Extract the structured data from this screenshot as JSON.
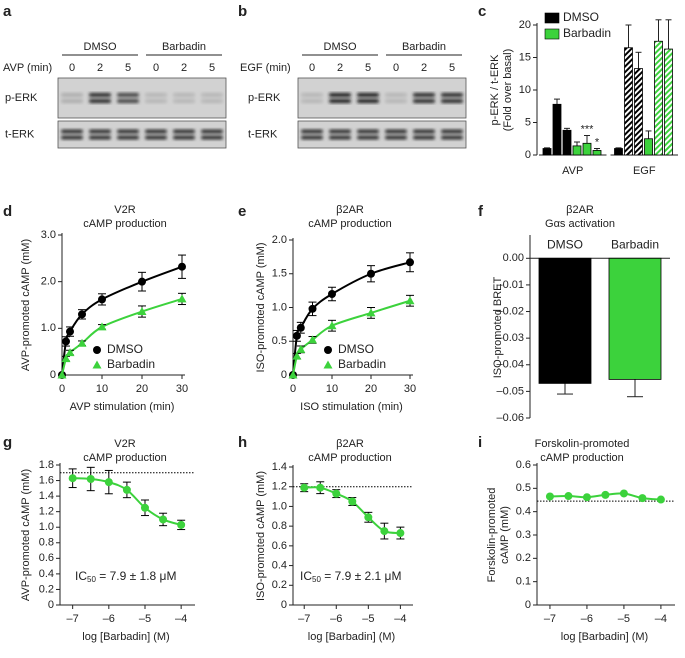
{
  "blots": [
    {
      "panel": "a",
      "stimulus": "AVP (min)",
      "groups": [
        "DMSO",
        "Barbadin"
      ],
      "times": [
        "0",
        "2",
        "5",
        "0",
        "2",
        "5"
      ],
      "rows": [
        "p-ERK",
        "t-ERK"
      ]
    },
    {
      "panel": "b",
      "stimulus": "EGF (min)",
      "groups": [
        "DMSO",
        "Barbadin"
      ],
      "times": [
        "0",
        "2",
        "5",
        "0",
        "2",
        "5"
      ],
      "rows": [
        "p-ERK",
        "t-ERK"
      ]
    }
  ],
  "chart_data": [
    {
      "panel": "c",
      "type": "bar",
      "ylabel": [
        "p-ERK / t-ERK",
        "(Fold over basal)"
      ],
      "categories": [
        "AVP",
        "EGF"
      ],
      "series": [
        {
          "name": "DMSO",
          "color": "#000000",
          "values": [
            [
              1,
              7.8,
              3.8
            ],
            [
              1,
              16.5,
              13.3
            ]
          ],
          "errors": [
            [
              0.1,
              0.8,
              0.3
            ],
            [
              0.1,
              3.5,
              2.5
            ]
          ]
        },
        {
          "name": "Barbadin",
          "color": "#3cd23c",
          "values": [
            [
              1.4,
              1.8,
              0.7
            ],
            [
              2.5,
              17.5,
              16.3
            ]
          ],
          "errors": [
            [
              0.6,
              1.2,
              0.3
            ],
            [
              1.2,
              3.3,
              4.5
            ]
          ],
          "significance": [
            [
              null,
              "***",
              "*"
            ],
            [
              null,
              null,
              null
            ]
          ]
        }
      ],
      "hatched": [
        [
          false,
          false,
          false
        ],
        [
          false,
          true,
          true
        ]
      ],
      "ylim": [
        0,
        20
      ],
      "yticks": [
        0,
        5,
        10,
        15,
        20
      ],
      "legend": "upper left"
    },
    {
      "panel": "d",
      "type": "line",
      "title": [
        "V2R",
        "cAMP production"
      ],
      "xlabel": "AVP stimulation (min)",
      "ylabel": [
        "AVP-promoted cAMP (mM)"
      ],
      "x": [
        0,
        1,
        2,
        5,
        10,
        20,
        30
      ],
      "series": [
        {
          "name": "DMSO",
          "color": "#000000",
          "marker": "circle",
          "values": [
            0,
            0.72,
            0.93,
            1.3,
            1.62,
            2.0,
            2.32
          ],
          "errors": [
            0,
            0.1,
            0.1,
            0.1,
            0.12,
            0.2,
            0.25
          ]
        },
        {
          "name": "Barbadin",
          "color": "#3cd23c",
          "marker": "triangle",
          "values": [
            0,
            0.35,
            0.48,
            0.68,
            1.03,
            1.36,
            1.63
          ],
          "errors": [
            0,
            0.05,
            0.05,
            0.05,
            0.05,
            0.12,
            0.12
          ]
        }
      ],
      "xlim": [
        0,
        30
      ],
      "xticks": [
        0,
        10,
        20,
        30
      ],
      "ylim": [
        0,
        3
      ],
      "yticks": [
        0,
        {
          "value": 1,
          "label": "1.0"
        },
        {
          "value": 2,
          "label": "2.0"
        },
        {
          "value": 3,
          "label": "3.0"
        }
      ],
      "legend": "lower right"
    },
    {
      "panel": "e",
      "type": "line",
      "title": [
        "β2AR",
        "cAMP production"
      ],
      "xlabel": "ISO stimulation (min)",
      "ylabel": [
        "ISO-promoted cAMP (mM)"
      ],
      "x": [
        0,
        1,
        2,
        5,
        10,
        20,
        30
      ],
      "series": [
        {
          "name": "DMSO",
          "color": "#000000",
          "marker": "circle",
          "values": [
            0,
            0.58,
            0.7,
            0.98,
            1.2,
            1.5,
            1.67
          ],
          "errors": [
            0,
            0.08,
            0.08,
            0.1,
            0.1,
            0.12,
            0.14
          ]
        },
        {
          "name": "Barbadin",
          "color": "#3cd23c",
          "marker": "triangle",
          "values": [
            0,
            0.28,
            0.38,
            0.52,
            0.73,
            0.92,
            1.1
          ],
          "errors": [
            0,
            0.04,
            0.05,
            0.05,
            0.08,
            0.08,
            0.08
          ]
        }
      ],
      "xlim": [
        0,
        30
      ],
      "xticks": [
        0,
        10,
        20,
        30
      ],
      "ylim": [
        0,
        2
      ],
      "yticks": [
        0,
        0.5,
        {
          "value": 1,
          "label": "1.0"
        },
        1.5,
        {
          "value": 2,
          "label": "2.0"
        }
      ],
      "legend": "lower right"
    },
    {
      "panel": "f",
      "type": "bar",
      "title": [
        "β2AR",
        "Gαs activation"
      ],
      "ylabel": [
        "ISO-promoted BRET"
      ],
      "categories": [
        "DMSO",
        "Barbadin"
      ],
      "values": [
        -0.047,
        -0.0455
      ],
      "errors": [
        0.004,
        0.0065
      ],
      "colors": [
        "#000000",
        "#3cd23c"
      ],
      "ylim": [
        -0.06,
        0.008
      ],
      "yticks": [
        {
          "value": 0,
          "label": "0.00"
        },
        {
          "value": -0.01,
          "label": "–0.01"
        },
        {
          "value": -0.02,
          "label": "–0.02"
        },
        {
          "value": -0.03,
          "label": "–0.03"
        },
        {
          "value": -0.04,
          "label": "–0.04"
        },
        {
          "value": -0.05,
          "label": "–0.05"
        },
        {
          "value": -0.06,
          "label": "–0.06"
        }
      ]
    },
    {
      "panel": "g",
      "type": "line",
      "title": [
        "V2R",
        "cAMP production"
      ],
      "xlabel": "log [Barbadin] (M)",
      "ylabel": [
        "AVP-promoted cAMP (mM)"
      ],
      "x": [
        -7,
        -6.5,
        -6,
        -5.5,
        -5,
        -4.5,
        -4
      ],
      "series": [
        {
          "color": "#3cd23c",
          "marker": "circle",
          "values": [
            1.63,
            1.62,
            1.58,
            1.48,
            1.25,
            1.1,
            1.03
          ],
          "errors": [
            0.12,
            0.15,
            0.15,
            0.1,
            0.1,
            0.08,
            0.06
          ]
        }
      ],
      "reference_line": 1.7,
      "annotation": {
        "text": "IC",
        "subscript": "50",
        "rest": " = 7.9 ± 1.8 μM"
      },
      "xlim": [
        -7.35,
        -3.7
      ],
      "xticks": [
        {
          "value": -7,
          "label": "–7"
        },
        {
          "value": -6,
          "label": "–6"
        },
        {
          "value": -5,
          "label": "–5"
        },
        {
          "value": -4,
          "label": "–4"
        }
      ],
      "ylim": [
        0,
        1.8
      ],
      "yticks": [
        0,
        0.2,
        0.4,
        0.6,
        0.8,
        {
          "value": 1,
          "label": "1.0"
        },
        1.2,
        1.4,
        1.6,
        1.8
      ]
    },
    {
      "panel": "h",
      "type": "line",
      "title": [
        "β2AR",
        "cAMP production"
      ],
      "xlabel": "log [Barbadin] (M)",
      "ylabel": [
        "ISO-promoted cAMP (mM)"
      ],
      "x": [
        -7,
        -6.5,
        -6,
        -5.5,
        -5,
        -4.5,
        -4
      ],
      "series": [
        {
          "color": "#3cd23c",
          "marker": "circle",
          "values": [
            1.19,
            1.19,
            1.13,
            1.05,
            0.89,
            0.75,
            0.73
          ],
          "errors": [
            0.04,
            0.06,
            0.04,
            0.04,
            0.05,
            0.08,
            0.06
          ]
        }
      ],
      "reference_line": 1.2,
      "annotation": {
        "text": "IC",
        "subscript": "50",
        "rest": " = 7.9 ± 2.1 μM"
      },
      "xlim": [
        -7.35,
        -3.7
      ],
      "xticks": [
        {
          "value": -7,
          "label": "–7"
        },
        {
          "value": -6,
          "label": "–6"
        },
        {
          "value": -5,
          "label": "–5"
        },
        {
          "value": -4,
          "label": "–4"
        }
      ],
      "ylim": [
        0,
        1.4
      ],
      "yticks": [
        0,
        0.2,
        0.4,
        0.6,
        0.8,
        {
          "value": 1,
          "label": "1.0"
        },
        1.2,
        1.4
      ]
    },
    {
      "panel": "i",
      "type": "line",
      "title": [
        "Forskolin-promoted",
        "cAMP production"
      ],
      "xlabel": "log [Barbadin] (M)",
      "ylabel": [
        "Forskolin-promoted",
        "cAMP (mM)"
      ],
      "x": [
        -7,
        -6.5,
        -6,
        -5.5,
        -5,
        -4.5,
        -4
      ],
      "series": [
        {
          "color": "#3cd23c",
          "marker": "circle",
          "values": [
            0.465,
            0.467,
            0.462,
            0.472,
            0.478,
            0.458,
            0.452
          ]
        }
      ],
      "reference_line": 0.445,
      "xlim": [
        -7.35,
        -3.7
      ],
      "xticks": [
        {
          "value": -7,
          "label": "–7"
        },
        {
          "value": -6,
          "label": "–6"
        },
        {
          "value": -5,
          "label": "–5"
        },
        {
          "value": -4,
          "label": "–4"
        }
      ],
      "ylim": [
        0,
        0.6
      ],
      "yticks": [
        0,
        0.1,
        0.2,
        0.3,
        0.4,
        0.5,
        0.6
      ]
    }
  ]
}
